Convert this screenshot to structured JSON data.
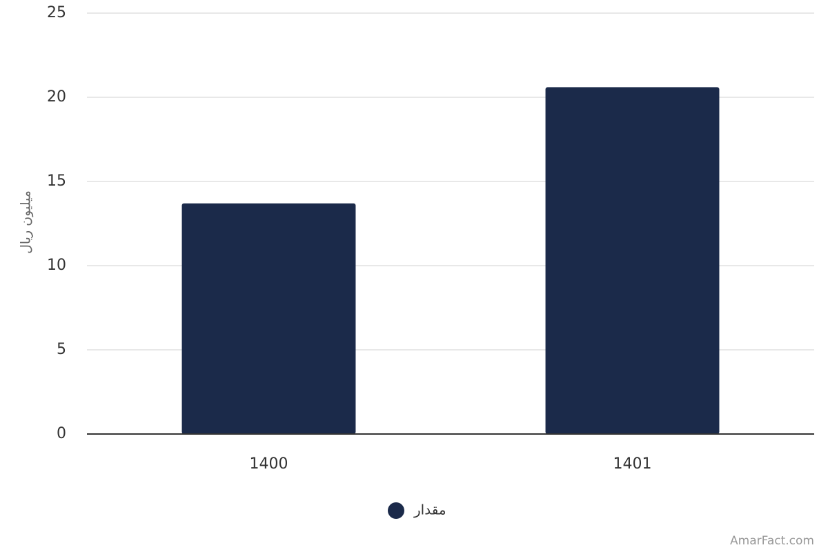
{
  "chart_data": {
    "type": "bar",
    "y_label": "میلیون ریال",
    "categories": [
      "1400",
      "1401"
    ],
    "series": [
      {
        "name": "مقدار",
        "color": "#1b2a4a",
        "values": [
          13.7,
          20.6
        ]
      }
    ],
    "ylim": [
      0,
      25
    ],
    "yticks": [
      0,
      5,
      10,
      15,
      20,
      25
    ],
    "grid": true,
    "legend": "bottom",
    "credit": "AmarFact.com"
  }
}
